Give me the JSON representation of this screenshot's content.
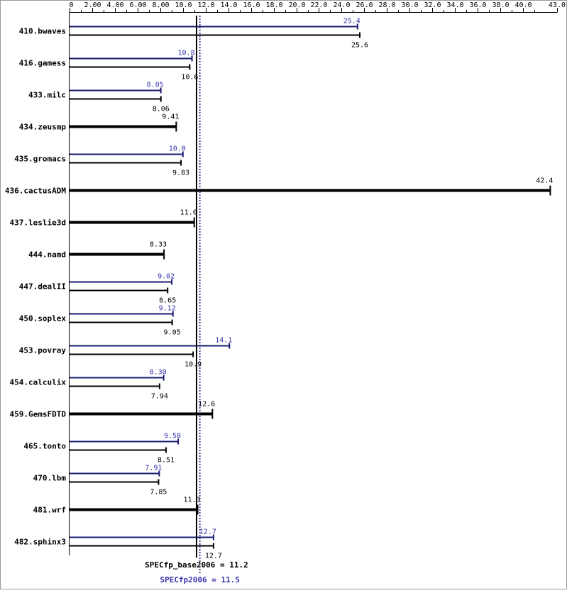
{
  "chart_data": {
    "type": "bar",
    "orientation": "horizontal",
    "xlim": [
      0,
      43.0
    ],
    "ticks": [
      "0",
      "2.00",
      "4.00",
      "6.00",
      "8.00",
      "10.0",
      "12.0",
      "14.0",
      "16.0",
      "18.0",
      "20.0",
      "22.0",
      "24.0",
      "26.0",
      "28.0",
      "30.0",
      "32.0",
      "34.0",
      "36.0",
      "38.0",
      "40.0",
      "43.0"
    ],
    "tick_values": [
      0,
      2,
      4,
      6,
      8,
      10,
      12,
      14,
      16,
      18,
      20,
      22,
      24,
      26,
      28,
      30,
      32,
      34,
      36,
      38,
      40,
      43
    ],
    "colors": {
      "peak": "#191970",
      "base": "#000000",
      "peak_text": "#3333aa",
      "background": "#ffffff"
    },
    "categories": [
      "410.bwaves",
      "416.gamess",
      "433.milc",
      "434.zeusmp",
      "435.gromacs",
      "436.cactusADM",
      "437.leslie3d",
      "444.namd",
      "447.dealII",
      "450.soplex",
      "453.povray",
      "454.calculix",
      "459.GemsFDTD",
      "465.tonto",
      "470.lbm",
      "481.wrf",
      "482.sphinx3"
    ],
    "series": [
      {
        "key": "peak",
        "values": [
          25.4,
          10.8,
          8.05,
          9.41,
          10.0,
          42.4,
          11.0,
          8.33,
          9.02,
          9.12,
          14.1,
          8.3,
          12.6,
          9.58,
          7.91,
          11.3,
          12.7
        ],
        "labels": [
          "25.4",
          "10.8",
          "8.05",
          "9.41",
          "10.0",
          "42.4",
          "11.0",
          "8.33",
          "9.02",
          "9.12",
          "14.1",
          "8.30",
          "12.6",
          "9.58",
          "7.91",
          "11.3",
          "12.7"
        ]
      },
      {
        "key": "base",
        "values": [
          25.6,
          10.6,
          8.06,
          9.41,
          9.83,
          42.4,
          11.0,
          8.33,
          8.65,
          9.05,
          10.9,
          7.94,
          12.6,
          8.51,
          7.85,
          11.3,
          12.7
        ],
        "labels": [
          "25.6",
          "10.6",
          "8.06",
          "",
          "9.83",
          "",
          "",
          "",
          "8.65",
          "9.05",
          "10.9",
          "7.94",
          "",
          "8.51",
          "7.85",
          "",
          "12.7"
        ]
      }
    ],
    "combined": [
      false,
      false,
      false,
      true,
      false,
      true,
      true,
      true,
      false,
      false,
      false,
      false,
      true,
      false,
      false,
      true,
      false
    ],
    "reference_lines": [
      {
        "key": "base",
        "value": 11.2,
        "label": "SPECfp_base2006 = 11.2",
        "style": "solid"
      },
      {
        "key": "peak",
        "value": 11.5,
        "label": "SPECfp2006 = 11.5",
        "style": "dotted"
      }
    ]
  }
}
